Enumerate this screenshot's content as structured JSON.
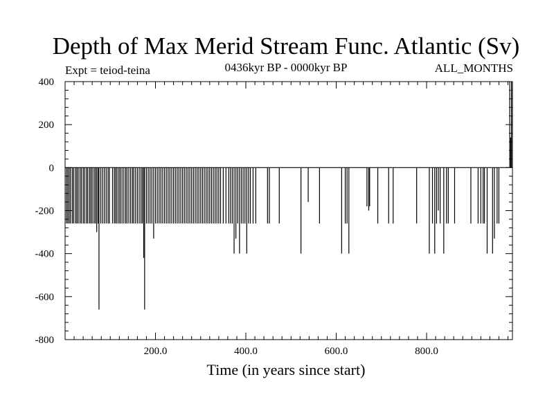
{
  "chart_data": {
    "type": "line",
    "title": "Depth of Max Merid Stream Func. Atlantic (Sv)",
    "subtitle": "0436kyr BP - 0000kyr BP",
    "experiment": "Expt = teiod-teina",
    "period": "ALL_MONTHS",
    "xlabel": "Time (in years since start)",
    "ylabel": "",
    "xlim": [
      0,
      990
    ],
    "ylim": [
      -800,
      400
    ],
    "x_ticks": [
      200,
      400,
      600,
      800
    ],
    "x_tick_labels": [
      "200.0",
      "400.0",
      "600.0",
      "800.0"
    ],
    "y_ticks": [
      -800,
      -600,
      -400,
      -200,
      0,
      200,
      400
    ],
    "y_tick_labels": [
      "-800",
      "-600",
      "-400",
      "-200",
      "0",
      "200",
      "400"
    ],
    "series": [
      {
        "name": "Depth of Max Merid Stream Func.",
        "color": "#000000",
        "spikes": [
          {
            "x": 3,
            "y": -260
          },
          {
            "x": 6,
            "y": -260
          },
          {
            "x": 9,
            "y": -260
          },
          {
            "x": 12,
            "y": -260
          },
          {
            "x": 16,
            "y": -260
          },
          {
            "x": 19,
            "y": -260
          },
          {
            "x": 23,
            "y": -260
          },
          {
            "x": 26,
            "y": -260
          },
          {
            "x": 29,
            "y": -260
          },
          {
            "x": 33,
            "y": -260
          },
          {
            "x": 36,
            "y": -260
          },
          {
            "x": 40,
            "y": -260
          },
          {
            "x": 43,
            "y": -260
          },
          {
            "x": 47,
            "y": -260
          },
          {
            "x": 50,
            "y": -260
          },
          {
            "x": 54,
            "y": -260
          },
          {
            "x": 57,
            "y": -260
          },
          {
            "x": 60,
            "y": -260
          },
          {
            "x": 64,
            "y": -260
          },
          {
            "x": 67,
            "y": -260
          },
          {
            "x": 70,
            "y": -300
          },
          {
            "x": 73,
            "y": -260
          },
          {
            "x": 75,
            "y": -660
          },
          {
            "x": 79,
            "y": -260
          },
          {
            "x": 83,
            "y": -260
          },
          {
            "x": 87,
            "y": -260
          },
          {
            "x": 91,
            "y": -260
          },
          {
            "x": 95,
            "y": -260
          },
          {
            "x": 98,
            "y": -260
          },
          {
            "x": 105,
            "y": -260
          },
          {
            "x": 109,
            "y": -260
          },
          {
            "x": 112,
            "y": -260
          },
          {
            "x": 115,
            "y": -260
          },
          {
            "x": 119,
            "y": -260
          },
          {
            "x": 122,
            "y": -260
          },
          {
            "x": 126,
            "y": -260
          },
          {
            "x": 130,
            "y": -260
          },
          {
            "x": 134,
            "y": -260
          },
          {
            "x": 137,
            "y": -260
          },
          {
            "x": 141,
            "y": -260
          },
          {
            "x": 145,
            "y": -260
          },
          {
            "x": 149,
            "y": -260
          },
          {
            "x": 152,
            "y": -260
          },
          {
            "x": 156,
            "y": -260
          },
          {
            "x": 160,
            "y": -260
          },
          {
            "x": 164,
            "y": -260
          },
          {
            "x": 168,
            "y": -260
          },
          {
            "x": 171,
            "y": -260
          },
          {
            "x": 174,
            "y": -420
          },
          {
            "x": 176,
            "y": -660
          },
          {
            "x": 180,
            "y": -260
          },
          {
            "x": 184,
            "y": -260
          },
          {
            "x": 188,
            "y": -260
          },
          {
            "x": 192,
            "y": -260
          },
          {
            "x": 196,
            "y": -330
          },
          {
            "x": 200,
            "y": -260
          },
          {
            "x": 204,
            "y": -260
          },
          {
            "x": 208,
            "y": -260
          },
          {
            "x": 212,
            "y": -260
          },
          {
            "x": 216,
            "y": -260
          },
          {
            "x": 220,
            "y": -260
          },
          {
            "x": 224,
            "y": -260
          },
          {
            "x": 228,
            "y": -260
          },
          {
            "x": 232,
            "y": -260
          },
          {
            "x": 236,
            "y": -260
          },
          {
            "x": 240,
            "y": -260
          },
          {
            "x": 244,
            "y": -260
          },
          {
            "x": 248,
            "y": -260
          },
          {
            "x": 252,
            "y": -260
          },
          {
            "x": 256,
            "y": -260
          },
          {
            "x": 260,
            "y": -260
          },
          {
            "x": 264,
            "y": -260
          },
          {
            "x": 268,
            "y": -260
          },
          {
            "x": 272,
            "y": -260
          },
          {
            "x": 276,
            "y": -260
          },
          {
            "x": 280,
            "y": -260
          },
          {
            "x": 284,
            "y": -260
          },
          {
            "x": 288,
            "y": -260
          },
          {
            "x": 292,
            "y": -260
          },
          {
            "x": 296,
            "y": -260
          },
          {
            "x": 300,
            "y": -260
          },
          {
            "x": 304,
            "y": -260
          },
          {
            "x": 308,
            "y": -260
          },
          {
            "x": 312,
            "y": -260
          },
          {
            "x": 316,
            "y": -260
          },
          {
            "x": 320,
            "y": -260
          },
          {
            "x": 324,
            "y": -260
          },
          {
            "x": 328,
            "y": -260
          },
          {
            "x": 332,
            "y": -260
          },
          {
            "x": 336,
            "y": -260
          },
          {
            "x": 340,
            "y": -260
          },
          {
            "x": 344,
            "y": -260
          },
          {
            "x": 350,
            "y": -260
          },
          {
            "x": 356,
            "y": -260
          },
          {
            "x": 362,
            "y": -260
          },
          {
            "x": 366,
            "y": -260
          },
          {
            "x": 370,
            "y": -260
          },
          {
            "x": 374,
            "y": -400
          },
          {
            "x": 378,
            "y": -330
          },
          {
            "x": 382,
            "y": -260
          },
          {
            "x": 386,
            "y": -400
          },
          {
            "x": 390,
            "y": -260
          },
          {
            "x": 394,
            "y": -260
          },
          {
            "x": 398,
            "y": -260
          },
          {
            "x": 402,
            "y": -400
          },
          {
            "x": 406,
            "y": -260
          },
          {
            "x": 410,
            "y": -260
          },
          {
            "x": 416,
            "y": -260
          },
          {
            "x": 422,
            "y": -260
          },
          {
            "x": 448,
            "y": -260
          },
          {
            "x": 452,
            "y": -260
          },
          {
            "x": 474,
            "y": -260
          },
          {
            "x": 522,
            "y": -400
          },
          {
            "x": 538,
            "y": -160
          },
          {
            "x": 563,
            "y": -260
          },
          {
            "x": 612,
            "y": -400
          },
          {
            "x": 620,
            "y": -260
          },
          {
            "x": 624,
            "y": -260
          },
          {
            "x": 628,
            "y": -400
          },
          {
            "x": 668,
            "y": -180
          },
          {
            "x": 672,
            "y": -200
          },
          {
            "x": 674,
            "y": -180
          },
          {
            "x": 692,
            "y": -260
          },
          {
            "x": 716,
            "y": -260
          },
          {
            "x": 726,
            "y": -260
          },
          {
            "x": 778,
            "y": -260
          },
          {
            "x": 806,
            "y": -400
          },
          {
            "x": 813,
            "y": -260
          },
          {
            "x": 818,
            "y": -400
          },
          {
            "x": 822,
            "y": -260
          },
          {
            "x": 826,
            "y": -200
          },
          {
            "x": 830,
            "y": -260
          },
          {
            "x": 838,
            "y": -400
          },
          {
            "x": 844,
            "y": -260
          },
          {
            "x": 848,
            "y": -260
          },
          {
            "x": 862,
            "y": -260
          },
          {
            "x": 898,
            "y": -260
          },
          {
            "x": 914,
            "y": -260
          },
          {
            "x": 920,
            "y": -260
          },
          {
            "x": 925,
            "y": -260
          },
          {
            "x": 928,
            "y": -260
          },
          {
            "x": 934,
            "y": -400
          },
          {
            "x": 946,
            "y": -400
          },
          {
            "x": 950,
            "y": -330
          },
          {
            "x": 956,
            "y": -260
          },
          {
            "x": 960,
            "y": -260
          },
          {
            "x": 984,
            "y": 400
          },
          {
            "x": 986,
            "y": 140
          },
          {
            "x": 988,
            "y": 400
          }
        ]
      }
    ]
  }
}
